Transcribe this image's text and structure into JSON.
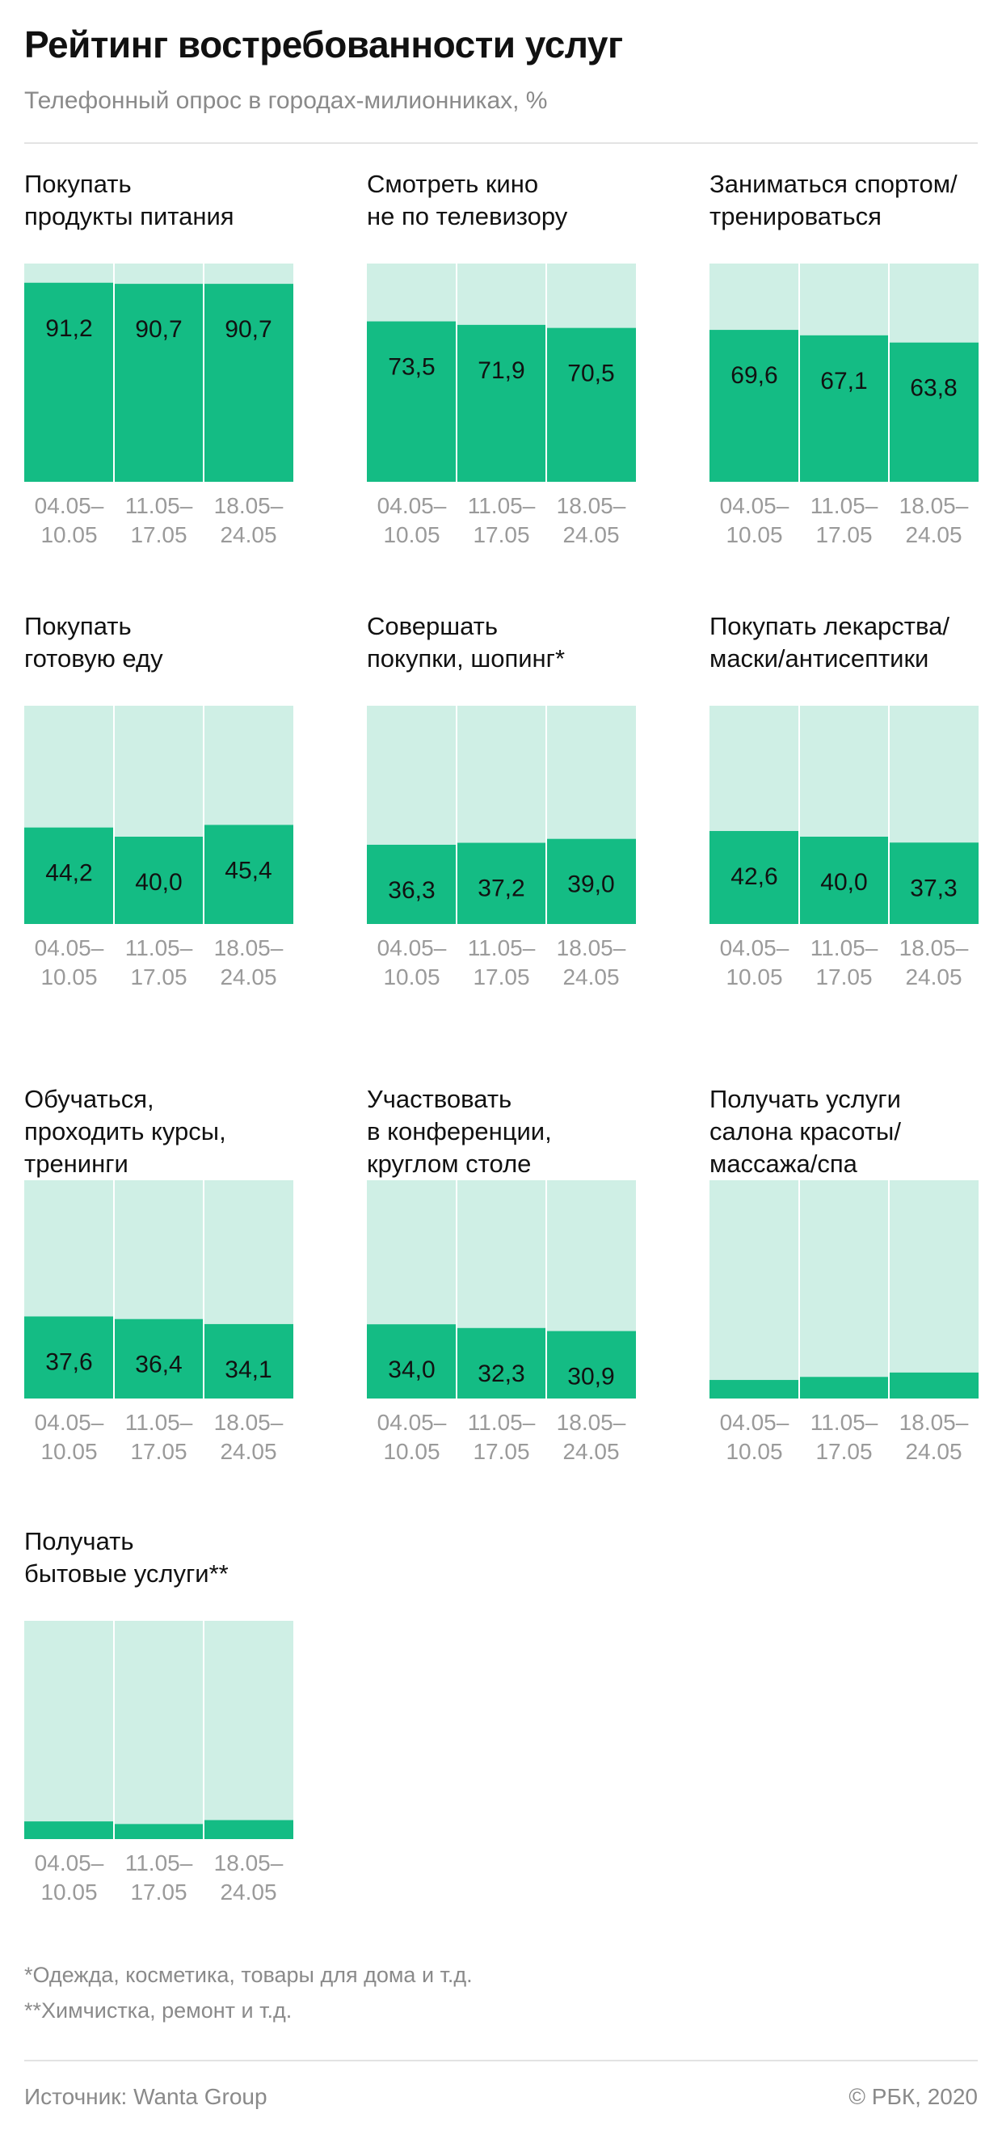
{
  "header": {
    "title": "Рейтинг востребованности услуг",
    "subtitle": "Телефонный опрос в городах-милионниках, %"
  },
  "colors": {
    "bar": "#14bc84",
    "track": "#cfefe5",
    "label": "#111111",
    "axis": "#9a9a9a"
  },
  "chart_data": [
    {
      "type": "bar",
      "title": "Покупать\nпродукты питания",
      "categories": [
        "04.05–\n10.05",
        "11.05–\n17.05",
        "18.05–\n24.05"
      ],
      "values": [
        91.2,
        90.7,
        90.7
      ],
      "labels": [
        "91,2",
        "90,7",
        "90,7"
      ],
      "ylim": [
        0,
        100
      ]
    },
    {
      "type": "bar",
      "title": "Смотреть кино\nне по телевизору",
      "categories": [
        "04.05–\n10.05",
        "11.05–\n17.05",
        "18.05–\n24.05"
      ],
      "values": [
        73.5,
        71.9,
        70.5
      ],
      "labels": [
        "73,5",
        "71,9",
        "70,5"
      ],
      "ylim": [
        0,
        100
      ]
    },
    {
      "type": "bar",
      "title": "Заниматься спортом/\nтренироваться",
      "categories": [
        "04.05–\n10.05",
        "11.05–\n17.05",
        "18.05–\n24.05"
      ],
      "values": [
        69.6,
        67.1,
        63.8
      ],
      "labels": [
        "69,6",
        "67,1",
        "63,8"
      ],
      "ylim": [
        0,
        100
      ]
    },
    {
      "type": "bar",
      "title": "Покупать\nготовую еду",
      "categories": [
        "04.05–\n10.05",
        "11.05–\n17.05",
        "18.05–\n24.05"
      ],
      "values": [
        44.2,
        40.0,
        45.4
      ],
      "labels": [
        "44,2",
        "40,0",
        "45,4"
      ],
      "ylim": [
        0,
        100
      ]
    },
    {
      "type": "bar",
      "title": "Совершать\nпокупки, шопинг*",
      "categories": [
        "04.05–\n10.05",
        "11.05–\n17.05",
        "18.05–\n24.05"
      ],
      "values": [
        36.3,
        37.2,
        39.0
      ],
      "labels": [
        "36,3",
        "37,2",
        "39,0"
      ],
      "ylim": [
        0,
        100
      ]
    },
    {
      "type": "bar",
      "title": "Покупать лекарства/\nмаски/антисептики",
      "categories": [
        "04.05–\n10.05",
        "11.05–\n17.05",
        "18.05–\n24.05"
      ],
      "values": [
        42.6,
        40.0,
        37.3
      ],
      "labels": [
        "42,6",
        "40,0",
        "37,3"
      ],
      "ylim": [
        0,
        100
      ]
    },
    {
      "type": "bar",
      "title": "Обучаться,\nпроходить курсы,\nтренинги",
      "categories": [
        "04.05–\n10.05",
        "11.05–\n17.05",
        "18.05–\n24.05"
      ],
      "values": [
        37.6,
        36.4,
        34.1
      ],
      "labels": [
        "37,6",
        "36,4",
        "34,1"
      ],
      "ylim": [
        0,
        100
      ]
    },
    {
      "type": "bar",
      "title": "Участвовать\nв конференции,\nкруглом столе",
      "categories": [
        "04.05–\n10.05",
        "11.05–\n17.05",
        "18.05–\n24.05"
      ],
      "values": [
        34.0,
        32.3,
        30.9
      ],
      "labels": [
        "34,0",
        "32,3",
        "30,9"
      ],
      "ylim": [
        0,
        100
      ]
    },
    {
      "type": "bar",
      "title": "Получать услуги\nсалона красоты/\nмассажа/спа",
      "categories": [
        "04.05–\n10.05",
        "11.05–\n17.05",
        "18.05–\n24.05"
      ],
      "values": [
        8.5,
        9.9,
        11.9
      ],
      "labels": [
        "8,5",
        "9,9",
        "11,9"
      ],
      "ylim": [
        0,
        100
      ]
    },
    {
      "type": "bar",
      "title": "Получать\nбытовые услуги**",
      "categories": [
        "04.05–\n10.05",
        "11.05–\n17.05",
        "18.05–\n24.05"
      ],
      "values": [
        8.1,
        6.9,
        8.7
      ],
      "labels": [
        "8,1",
        "6,9",
        "8,7"
      ],
      "ylim": [
        0,
        100
      ]
    }
  ],
  "footnotes": {
    "note1": "*Одежда, косметика, товары для дома и т.д.",
    "note2": "**Химчистка, ремонт и т.д."
  },
  "footer": {
    "source": "Источник: Wanta Group",
    "copyright": "© РБК, 2020"
  }
}
